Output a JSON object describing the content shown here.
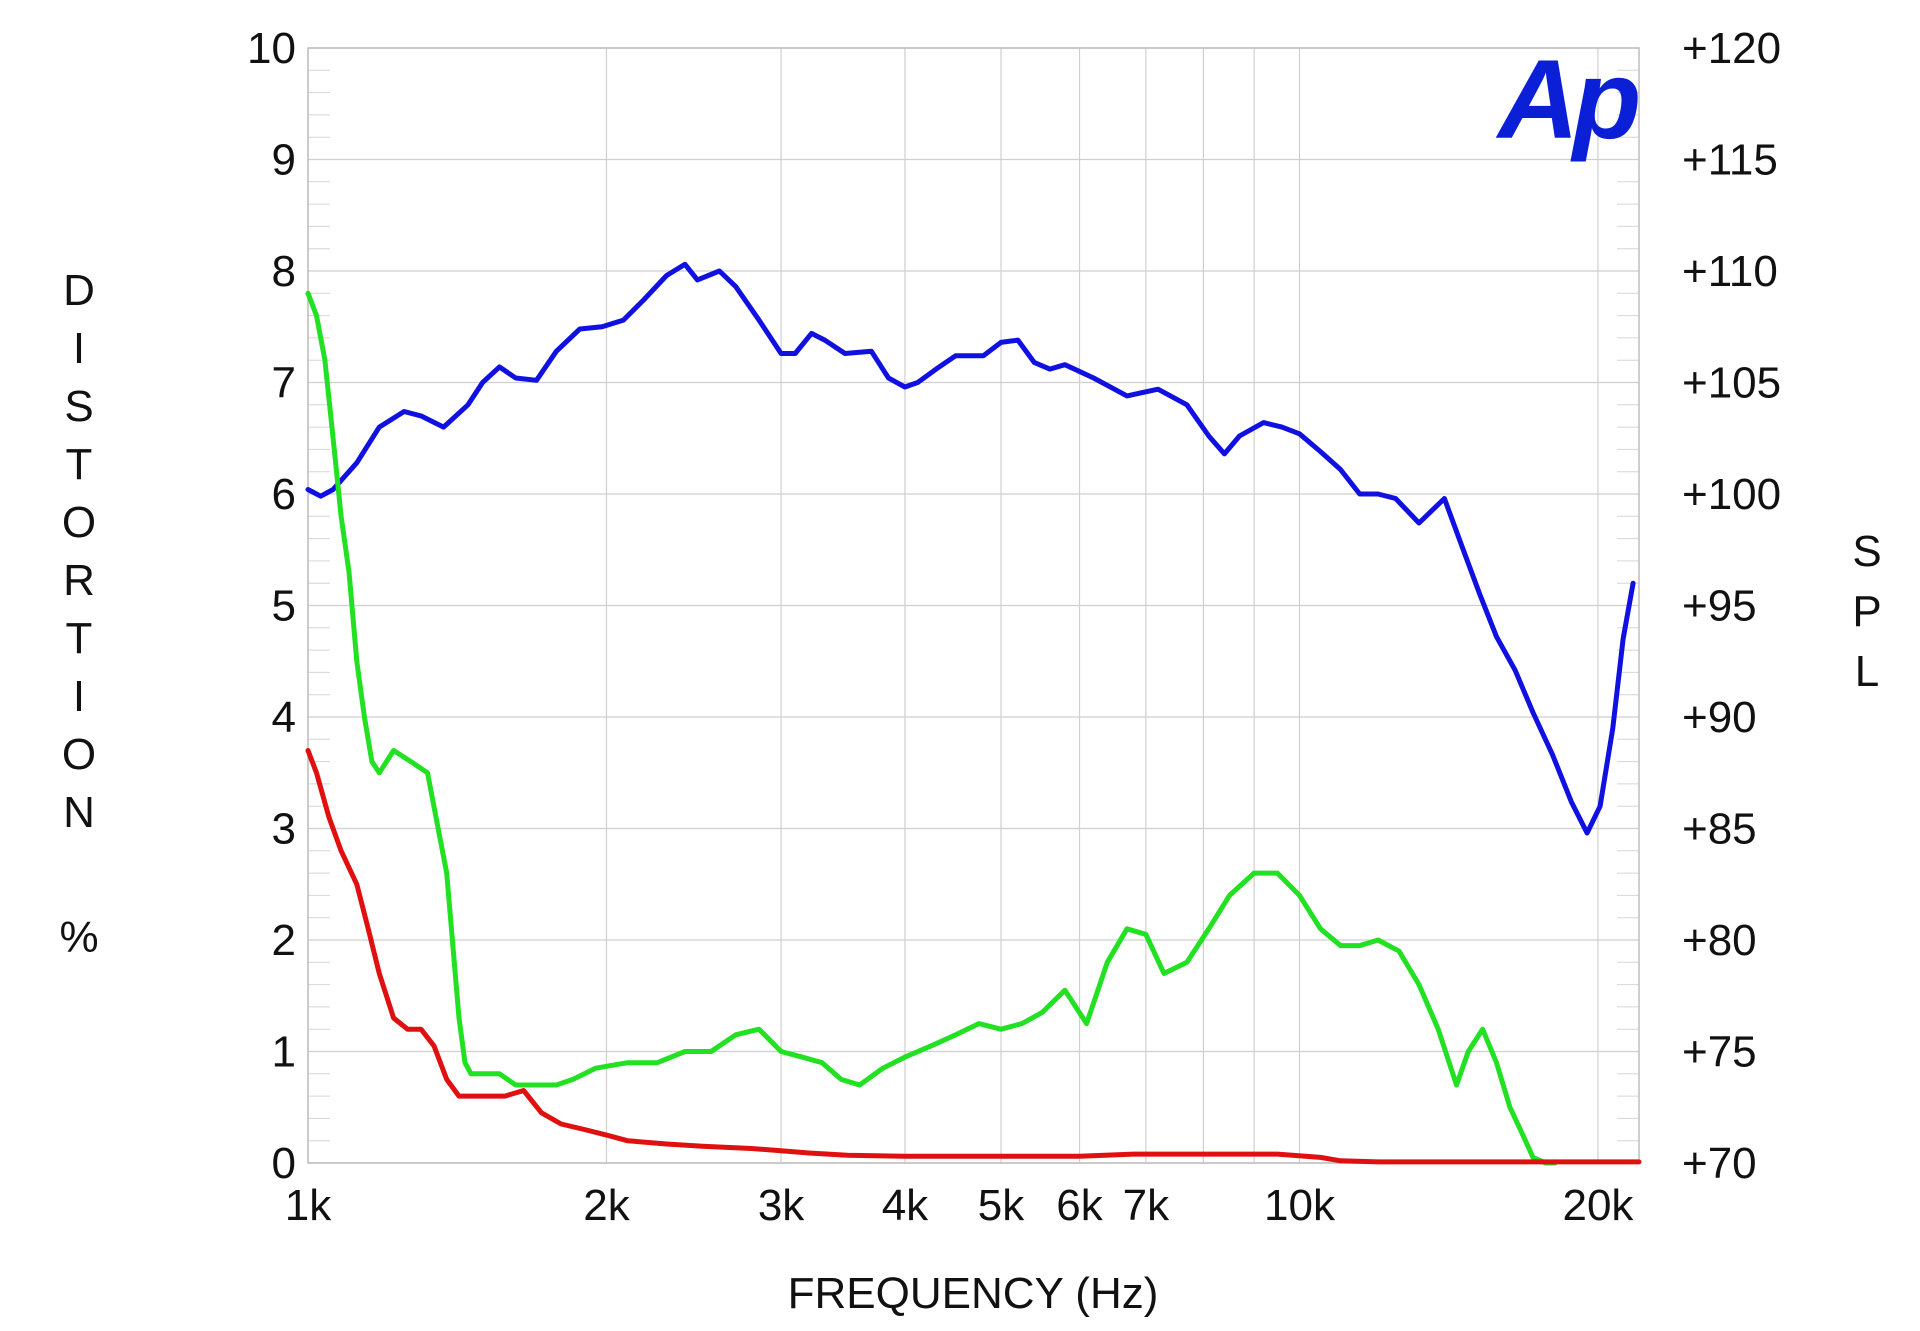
{
  "chart_data": {
    "type": "line",
    "title": "",
    "xlabel": "FREQUENCY (Hz)",
    "ylabel_left": "DISTORTION %",
    "ylabel_right": "SPL",
    "logo_text": "Ap",
    "x_scale": "log",
    "xlim": [
      1000,
      22000
    ],
    "ylim_left": [
      0,
      10
    ],
    "ylim_right": [
      70,
      120
    ],
    "grid": true,
    "x_ticks": [
      {
        "value": 1000,
        "label": "1k"
      },
      {
        "value": 2000,
        "label": "2k"
      },
      {
        "value": 3000,
        "label": "3k"
      },
      {
        "value": 4000,
        "label": "4k"
      },
      {
        "value": 5000,
        "label": "5k"
      },
      {
        "value": 6000,
        "label": "6k"
      },
      {
        "value": 7000,
        "label": "7k"
      },
      {
        "value": 10000,
        "label": "10k"
      },
      {
        "value": 20000,
        "label": "20k"
      }
    ],
    "y_ticks_left": [
      {
        "value": 0,
        "label": "0"
      },
      {
        "value": 1,
        "label": "1"
      },
      {
        "value": 2,
        "label": "2"
      },
      {
        "value": 3,
        "label": "3"
      },
      {
        "value": 4,
        "label": "4"
      },
      {
        "value": 5,
        "label": "5"
      },
      {
        "value": 6,
        "label": "6"
      },
      {
        "value": 7,
        "label": "7"
      },
      {
        "value": 8,
        "label": "8"
      },
      {
        "value": 9,
        "label": "9"
      },
      {
        "value": 10,
        "label": "10"
      }
    ],
    "y_ticks_right": [
      {
        "value": 70,
        "label": "+70"
      },
      {
        "value": 75,
        "label": "+75"
      },
      {
        "value": 80,
        "label": "+80"
      },
      {
        "value": 85,
        "label": "+85"
      },
      {
        "value": 90,
        "label": "+90"
      },
      {
        "value": 95,
        "label": "+95"
      },
      {
        "value": 100,
        "label": "+100"
      },
      {
        "value": 105,
        "label": "+105"
      },
      {
        "value": 110,
        "label": "+110"
      },
      {
        "value": 115,
        "label": "+115"
      },
      {
        "value": 120,
        "label": "+120"
      }
    ],
    "series": [
      {
        "color": "#1010e0",
        "axis": "right",
        "x": [
          1000,
          1030,
          1060,
          1120,
          1180,
          1250,
          1300,
          1370,
          1450,
          1500,
          1560,
          1620,
          1700,
          1780,
          1880,
          1980,
          2080,
          2180,
          2300,
          2400,
          2470,
          2600,
          2700,
          2850,
          3000,
          3100,
          3220,
          3320,
          3480,
          3700,
          3850,
          4000,
          4120,
          4300,
          4500,
          4800,
          5000,
          5200,
          5400,
          5600,
          5800,
          6200,
          6700,
          7200,
          7700,
          8100,
          8400,
          8700,
          9200,
          9600,
          10000,
          10500,
          11000,
          11500,
          12000,
          12500,
          13200,
          14000,
          14600,
          15200,
          15800,
          16500,
          17200,
          18000,
          18800,
          19500,
          20100,
          20700,
          21200,
          21700
        ],
        "values": [
          100.2,
          99.9,
          100.2,
          101.4,
          103.0,
          103.7,
          103.5,
          103.0,
          104.0,
          105.0,
          105.7,
          105.2,
          105.1,
          106.4,
          107.4,
          107.5,
          107.8,
          108.7,
          109.8,
          110.3,
          109.6,
          110.0,
          109.3,
          107.8,
          106.3,
          106.3,
          107.2,
          106.9,
          106.3,
          106.4,
          105.2,
          104.8,
          105.0,
          105.6,
          106.2,
          106.2,
          106.8,
          106.9,
          105.9,
          105.6,
          105.8,
          105.2,
          104.4,
          104.7,
          104.0,
          102.6,
          101.8,
          102.6,
          103.2,
          103.0,
          102.7,
          101.9,
          101.1,
          100.0,
          100.0,
          99.8,
          98.7,
          99.8,
          97.6,
          95.5,
          93.6,
          92.1,
          90.2,
          88.3,
          86.2,
          84.8,
          86.0,
          89.5,
          93.5,
          96.0
        ]
      },
      {
        "color": "#22e022",
        "axis": "left",
        "x": [
          1000,
          1020,
          1040,
          1060,
          1080,
          1100,
          1120,
          1140,
          1160,
          1180,
          1220,
          1270,
          1320,
          1380,
          1420,
          1440,
          1460,
          1500,
          1560,
          1620,
          1700,
          1780,
          1850,
          1950,
          2100,
          2250,
          2400,
          2550,
          2700,
          2850,
          3000,
          3150,
          3300,
          3450,
          3600,
          3800,
          4000,
          4250,
          4500,
          4750,
          5000,
          5250,
          5500,
          5800,
          6100,
          6400,
          6700,
          7000,
          7300,
          7700,
          8100,
          8500,
          9000,
          9500,
          10000,
          10500,
          11000,
          11500,
          12000,
          12600,
          13200,
          13800,
          14400,
          14800,
          15300,
          15800,
          16300,
          16800,
          17200,
          17700,
          18100
        ],
        "values": [
          7.8,
          7.6,
          7.2,
          6.5,
          5.8,
          5.3,
          4.5,
          4.0,
          3.6,
          3.5,
          3.7,
          3.6,
          3.5,
          2.6,
          1.3,
          0.9,
          0.8,
          0.8,
          0.8,
          0.7,
          0.7,
          0.7,
          0.75,
          0.85,
          0.9,
          0.9,
          1.0,
          1.0,
          1.15,
          1.2,
          1.0,
          0.95,
          0.9,
          0.75,
          0.7,
          0.85,
          0.95,
          1.05,
          1.15,
          1.25,
          1.2,
          1.25,
          1.35,
          1.55,
          1.25,
          1.8,
          2.1,
          2.05,
          1.7,
          1.8,
          2.1,
          2.4,
          2.6,
          2.6,
          2.4,
          2.1,
          1.95,
          1.95,
          2.0,
          1.9,
          1.6,
          1.2,
          0.7,
          1.0,
          1.2,
          0.9,
          0.5,
          0.25,
          0.05,
          0,
          0
        ]
      },
      {
        "color": "#e01010",
        "axis": "left",
        "x": [
          1000,
          1020,
          1050,
          1080,
          1120,
          1150,
          1180,
          1220,
          1260,
          1300,
          1340,
          1380,
          1420,
          1450,
          1500,
          1580,
          1650,
          1720,
          1800,
          1900,
          2000,
          2100,
          2300,
          2500,
          2800,
          3000,
          3200,
          3500,
          4000,
          4500,
          5000,
          5500,
          6000,
          6800,
          7500,
          8500,
          9500,
          10500,
          11000,
          12000,
          14000,
          16000,
          18000,
          20000,
          22000
        ],
        "values": [
          3.7,
          3.5,
          3.1,
          2.8,
          2.5,
          2.1,
          1.7,
          1.3,
          1.2,
          1.2,
          1.05,
          0.75,
          0.6,
          0.6,
          0.6,
          0.6,
          0.65,
          0.45,
          0.35,
          0.3,
          0.25,
          0.2,
          0.17,
          0.15,
          0.13,
          0.11,
          0.09,
          0.07,
          0.06,
          0.06,
          0.06,
          0.06,
          0.06,
          0.08,
          0.08,
          0.08,
          0.08,
          0.05,
          0.02,
          0.01,
          0.01,
          0.01,
          0.01,
          0.01,
          0.01
        ]
      }
    ]
  }
}
